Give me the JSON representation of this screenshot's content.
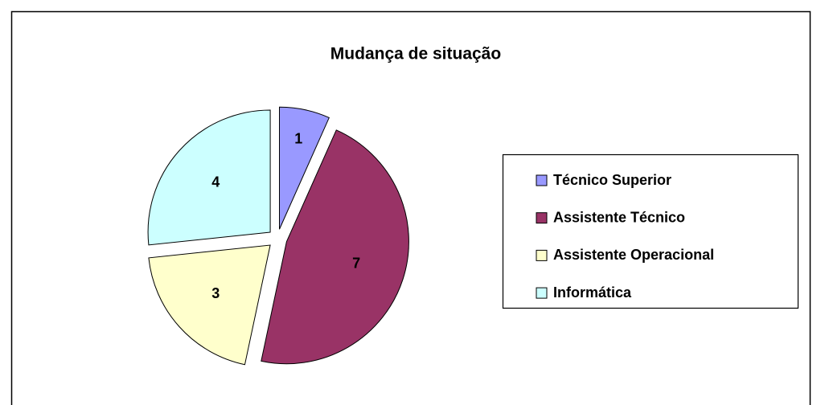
{
  "chart_data": {
    "type": "pie",
    "title": "Mudança de situação",
    "categories": [
      "Técnico Superior",
      "Assistente Técnico",
      "Assistente Operacional",
      "Informática"
    ],
    "values": [
      1,
      7,
      3,
      4
    ],
    "colors": [
      "#9999ff",
      "#993366",
      "#ffffcc",
      "#ccffff"
    ],
    "legend": "right"
  }
}
